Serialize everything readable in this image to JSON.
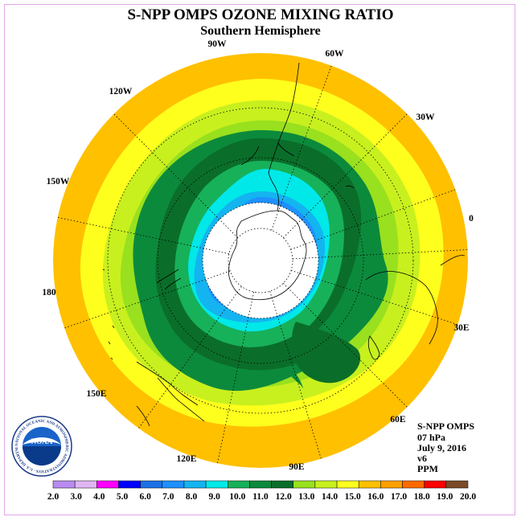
{
  "title": "S-NPP OMPS OZONE MIXING RATIO",
  "subtitle": "Southern Hemisphere",
  "info": {
    "instrument": "S-NPP OMPS",
    "pressure": "07 hPa",
    "date": "July 9, 2016",
    "version": "v6",
    "units": "PPM"
  },
  "longitude_labels": [
    "90W",
    "60W",
    "30W",
    "0",
    "30E",
    "60E",
    "90E",
    "120E",
    "150E",
    "180",
    "150W",
    "120W"
  ],
  "colorbar": {
    "ticks": [
      "2.0",
      "3.0",
      "4.0",
      "5.0",
      "6.0",
      "7.0",
      "8.0",
      "9.0",
      "10.0",
      "11.0",
      "12.0",
      "13.0",
      "14.0",
      "15.0",
      "16.0",
      "17.0",
      "18.0",
      "19.0",
      "20.0"
    ],
    "colors": [
      "#b88cf0",
      "#dfb6f2",
      "#ff00ff",
      "#0000ff",
      "#1e70e6",
      "#1e90ff",
      "#14b4f0",
      "#00e8e8",
      "#17b15a",
      "#0c8a3c",
      "#0a6e2a",
      "#99e01e",
      "#c8f01e",
      "#ffff1e",
      "#ffc000",
      "#ffa000",
      "#ff6a00",
      "#ff0000",
      "#7a4a28"
    ]
  },
  "logo": {
    "text": "NOAA",
    "ring_text": "NATIONAL OCEANIC AND ATMOSPHERIC ADMINISTRATION · U.S. DEPARTMENT OF COMMERCE"
  },
  "colors": {
    "frame": "#e2a6e8",
    "polar_mask": "#ffffff"
  }
}
